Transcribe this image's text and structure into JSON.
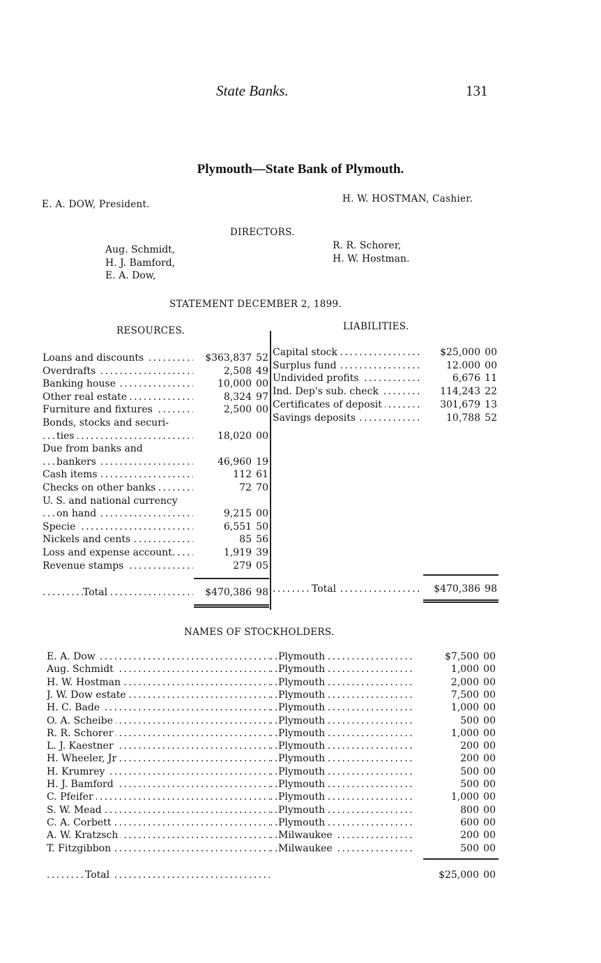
{
  "header": {
    "running_title": "State Banks.",
    "page_number": "131"
  },
  "bank": {
    "title": "Plymouth—State Bank of Plymouth.",
    "president": "E. A. DOW, President.",
    "cashier": "H. W. HOSTMAN, Cashier."
  },
  "directors": {
    "heading": "DIRECTORS.",
    "left": [
      "Aug. Schmidt,",
      "H. J. Bamford,",
      "E. A. Dow,"
    ],
    "right": [
      "R. R. Schorer,",
      "H. W. Hostman."
    ]
  },
  "statement": {
    "heading": "STATEMENT DECEMBER 2, 1899.",
    "resources": {
      "heading": "RESOURCES.",
      "items": [
        {
          "label": "Loans and discounts",
          "amount": "$363,837",
          "cents": "52"
        },
        {
          "label": "Overdrafts",
          "amount": "2,508",
          "cents": "49"
        },
        {
          "label": "Banking house",
          "amount": "10,000",
          "cents": "00"
        },
        {
          "label": "Other real estate",
          "amount": "8,324",
          "cents": "97"
        },
        {
          "label": "Furniture and fixtures",
          "amount": "2,500",
          "cents": "00"
        },
        {
          "label": "Bonds, stocks and securi-",
          "amount": "",
          "cents": ""
        },
        {
          "label": "ties",
          "amount": "18,020",
          "cents": "00",
          "indent": true
        },
        {
          "label": "Due from banks and",
          "amount": "",
          "cents": ""
        },
        {
          "label": "bankers",
          "amount": "46,960",
          "cents": "19",
          "indent": true
        },
        {
          "label": "Cash items",
          "amount": "112",
          "cents": "61"
        },
        {
          "label": "Checks on other banks",
          "amount": "72",
          "cents": "70"
        },
        {
          "label": "U. S. and national currency",
          "amount": "",
          "cents": ""
        },
        {
          "label": "on hand",
          "amount": "9,215",
          "cents": "00",
          "indent": true
        },
        {
          "label": "Specie",
          "amount": "6,551",
          "cents": "50"
        },
        {
          "label": "Nickels and cents",
          "amount": "85",
          "cents": "56"
        },
        {
          "label": "Loss and expense account.",
          "amount": "1,919",
          "cents": "39"
        },
        {
          "label": "Revenue stamps",
          "amount": "279",
          "cents": "05"
        }
      ],
      "total": {
        "label": "Total",
        "amount": "$470,386",
        "cents": "98"
      }
    },
    "liabilities": {
      "heading": "LIABILITIES.",
      "items": [
        {
          "label": "Capital stock",
          "amount": "$25,000",
          "cents": "00"
        },
        {
          "label": "Surplus fund",
          "amount": "12.000",
          "cents": "00"
        },
        {
          "label": "Undivided profits",
          "amount": "6,676",
          "cents": "11"
        },
        {
          "label": "Ind. Dep's sub. check",
          "amount": "114,243",
          "cents": "22"
        },
        {
          "label": "Certificates of deposit",
          "amount": "301,679",
          "cents": "13"
        },
        {
          "label": "Savings deposits",
          "amount": "10,788",
          "cents": "52"
        }
      ],
      "total": {
        "label": "Total",
        "amount": "$470,386",
        "cents": "98"
      }
    }
  },
  "stockholders": {
    "heading": "NAMES OF STOCKHOLDERS.",
    "items": [
      {
        "name": "E. A. Dow",
        "city": "Plymouth",
        "amount": "$7,500",
        "cents": "00"
      },
      {
        "name": "Aug. Schmidt",
        "city": "Plymouth",
        "amount": "1,000",
        "cents": "00"
      },
      {
        "name": "H. W. Hostman",
        "city": "Plymouth",
        "amount": "2,000",
        "cents": "00"
      },
      {
        "name": "J. W. Dow estate",
        "city": "Plymouth",
        "amount": "7,500",
        "cents": "00"
      },
      {
        "name": "H. C. Bade",
        "city": "Plymouth",
        "amount": "1,000",
        "cents": "00"
      },
      {
        "name": "O. A. Scheibe",
        "city": "Plymouth",
        "amount": "500",
        "cents": "00"
      },
      {
        "name": "R. R. Schorer",
        "city": "Plymouth",
        "amount": "1,000",
        "cents": "00"
      },
      {
        "name": "L. J. Kaestner",
        "city": "Plymouth",
        "amount": "200",
        "cents": "00"
      },
      {
        "name": "H. Wheeler, Jr",
        "city": "Plymouth",
        "amount": "200",
        "cents": "00"
      },
      {
        "name": "H. Krumrey",
        "city": "Plymouth",
        "amount": "500",
        "cents": "00"
      },
      {
        "name": "H. J. Bamford",
        "city": "Plymouth",
        "amount": "500",
        "cents": "00"
      },
      {
        "name": "C. Pfeifer",
        "city": "Plymouth",
        "amount": "1,000",
        "cents": "00"
      },
      {
        "name": "S. W. Mead",
        "city": "Plymouth",
        "amount": "800",
        "cents": "00"
      },
      {
        "name": "C. A. Corbett",
        "city": "Plymouth",
        "amount": "600",
        "cents": "00"
      },
      {
        "name": "A. W. Kratzsch",
        "city": "Milwaukee",
        "amount": "200",
        "cents": "00"
      },
      {
        "name": "T. Fitzgibbon",
        "city": "Milwaukee",
        "amount": "500",
        "cents": "00"
      }
    ],
    "total": {
      "label": "Total",
      "amount": "$25,000",
      "cents": "00"
    }
  }
}
